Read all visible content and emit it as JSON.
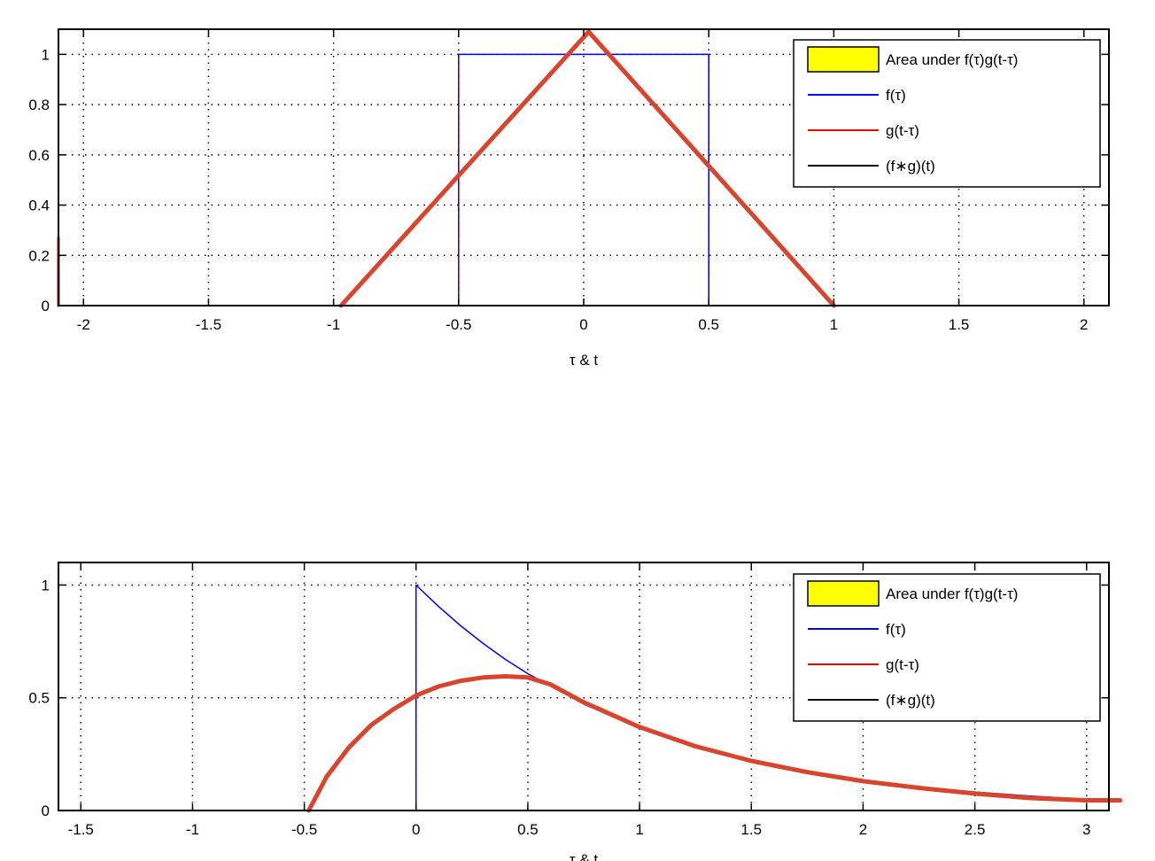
{
  "chart_data": [
    {
      "type": "line",
      "title": "",
      "xlabel": "τ & t",
      "ylabel": "",
      "xlim": [
        -2.1,
        2.1
      ],
      "ylim": [
        0,
        1.1
      ],
      "grid": true,
      "legend_placement": "top-right",
      "xticks": [
        -2,
        -1.5,
        -1,
        -0.5,
        0,
        0.5,
        1,
        1.5,
        2
      ],
      "xtick_labels": [
        "-2",
        "-1.5",
        "-1",
        "-0.5",
        "0",
        "0.5",
        "1",
        "1.5",
        "2"
      ],
      "yticks": [
        0,
        0.2,
        0.4,
        0.6,
        0.8,
        1
      ],
      "ytick_labels": [
        "0",
        "0.2",
        "0.4",
        "0.6",
        "0.8",
        "1"
      ],
      "legend": [
        {
          "label": "Area under f(τ)g(t-τ)",
          "kind": "patch",
          "color": "#ffff00"
        },
        {
          "label": "f(τ)",
          "kind": "line",
          "color": "#0000ff"
        },
        {
          "label": "g(t-τ)",
          "kind": "line",
          "color": "#ff0000"
        },
        {
          "label": "(f∗g)(t)",
          "kind": "line",
          "color": "#000000"
        }
      ],
      "series": [
        {
          "name": "f(τ)",
          "color": "#0000ff",
          "width": 1.5,
          "x": [
            -2.1,
            -0.5,
            -0.5,
            0.5,
            0.5,
            2.1
          ],
          "y": [
            0,
            0,
            1,
            1,
            0,
            0
          ]
        },
        {
          "name": "g(t-τ)",
          "color": "#ff0000",
          "width": 3,
          "x": [
            -2.1,
            -2.1
          ],
          "y": [
            0,
            0.27
          ]
        },
        {
          "name": "",
          "color": "#d9442c",
          "width": 5,
          "x": [
            -0.97,
            0.02,
            1.0
          ],
          "y": [
            0,
            1.09,
            0
          ]
        }
      ]
    },
    {
      "type": "line",
      "title": "",
      "xlabel": "τ & t",
      "ylabel": "",
      "xlim": [
        -1.6,
        3.1
      ],
      "ylim": [
        0,
        1.1
      ],
      "grid": true,
      "legend_placement": "top-right",
      "xticks": [
        -1.5,
        -1,
        -0.5,
        0,
        0.5,
        1,
        1.5,
        2,
        2.5,
        3
      ],
      "xtick_labels": [
        "-1.5",
        "-1",
        "-0.5",
        "0",
        "0.5",
        "1",
        "1.5",
        "2",
        "2.5",
        "3"
      ],
      "yticks": [
        0,
        0.5,
        1
      ],
      "ytick_labels": [
        "0",
        "0.5",
        "1"
      ],
      "legend": [
        {
          "label": "Area under f(τ)g(t-τ)",
          "kind": "patch",
          "color": "#ffff00"
        },
        {
          "label": "f(τ)",
          "kind": "line",
          "color": "#0000ff"
        },
        {
          "label": "g(t-τ)",
          "kind": "line",
          "color": "#ff0000"
        },
        {
          "label": "(f∗g)(t)",
          "kind": "line",
          "color": "#000000"
        }
      ],
      "series": [
        {
          "name": "f(τ)",
          "color": "#0000ff",
          "width": 1.5,
          "x": [
            -1.6,
            0,
            0,
            0.1,
            0.2,
            0.3,
            0.4,
            0.5,
            0.75,
            1.0,
            1.25,
            1.5,
            1.75,
            2.0,
            2.25,
            2.5,
            2.75,
            3.0
          ],
          "y": [
            0,
            0,
            1,
            0.905,
            0.819,
            0.741,
            0.67,
            0.607,
            0.472,
            0.368,
            0.287,
            0.223,
            0.174,
            0.135,
            0.105,
            0.082,
            0.064,
            0.05
          ]
        },
        {
          "name": "",
          "color": "#d9442c",
          "width": 5,
          "x": [
            -0.48,
            -0.4,
            -0.3,
            -0.2,
            -0.1,
            0,
            0.1,
            0.2,
            0.3,
            0.4,
            0.5,
            0.6,
            0.75,
            1.0,
            1.25,
            1.5,
            1.75,
            2.0,
            2.25,
            2.5,
            2.75,
            3.0,
            3.15
          ],
          "y": [
            0,
            0.15,
            0.28,
            0.38,
            0.45,
            0.51,
            0.55,
            0.575,
            0.59,
            0.595,
            0.59,
            0.56,
            0.48,
            0.37,
            0.285,
            0.22,
            0.17,
            0.13,
            0.1,
            0.075,
            0.055,
            0.045,
            0.045
          ]
        }
      ]
    }
  ]
}
